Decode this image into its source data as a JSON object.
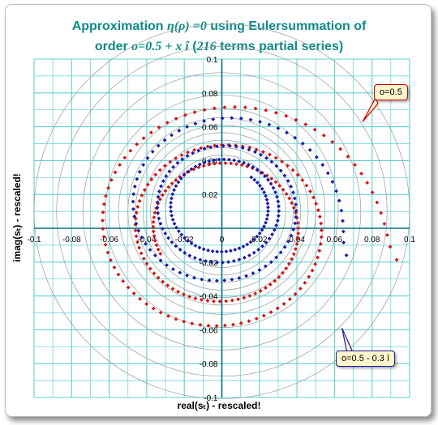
{
  "title_line1_prefix": "Approximation ",
  "title_line1_eta": "η(ρ) =0",
  "title_line1_suffix": " using Eulersummation of",
  "title_line2_prefix": "order ",
  "title_line2_order": "o=0.5 + x î",
  "title_line2_paren": " (",
  "title_line2_terms": "216",
  "title_line2_suffix": " terms partial series)",
  "xlabel": "real(sₜ) - rescaled!",
  "ylabel": "imag(sₜ) - rescaled!",
  "callouts": {
    "red": "o=0.5",
    "blue": "o=0.5 - 0.3 î"
  },
  "colors": {
    "title": "#0f8a8a",
    "grid": "#5fd0d6",
    "axis": "#0a7080",
    "red_series": "#dd1010",
    "blue_series": "#1a1aa8",
    "rings": "#9a9a9a"
  },
  "chart_data": {
    "type": "scatter",
    "xlim": [
      -0.1,
      0.1
    ],
    "ylim": [
      -0.1,
      0.1
    ],
    "grid": true,
    "x_ticks": [
      "-0.1",
      "-0.08",
      "-0.06",
      "-0.04",
      "-0.02",
      "0",
      "0.02",
      "0.04",
      "0.06",
      "0.08",
      "0.1"
    ],
    "y_ticks": [
      "0.1",
      "0.08",
      "0.06",
      "0.04",
      "0.02",
      "-0.02",
      "-0.04",
      "-0.06",
      "-0.08",
      "-0.1"
    ],
    "series": [
      {
        "name": "o=0.5",
        "color": "#dd1010",
        "spiral": {
          "start": [
            0.1,
            -0.02
          ],
          "turns": 2.6,
          "r_start": 0.095,
          "r_end": 0.036,
          "center": [
            0.0,
            0.0
          ],
          "end": [
            0.03,
            0.02
          ],
          "points": 216
        }
      },
      {
        "name": "o=0.5 - 0.3 î",
        "color": "#1a1aa8",
        "spiral": {
          "start": [
            0.095,
            -0.028
          ],
          "turns": 3.2,
          "r_start": 0.072,
          "r_end": 0.024,
          "center": [
            0.0,
            0.012
          ],
          "points": 216
        }
      }
    ],
    "rings": [
      0.03,
      0.034,
      0.038,
      0.042,
      0.046,
      0.05,
      0.055,
      0.062,
      0.074,
      0.088,
      0.1
    ]
  }
}
